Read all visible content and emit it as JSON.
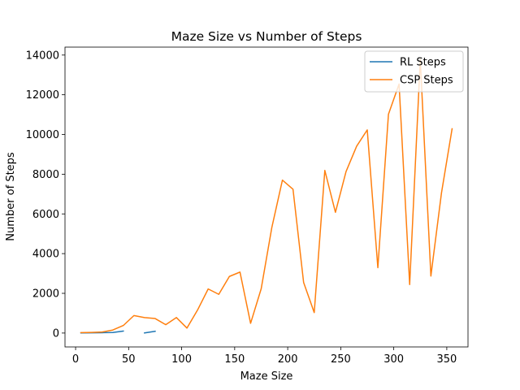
{
  "chart_data": {
    "type": "line",
    "title": "Maze Size vs Number of Steps",
    "xlabel": "Maze Size",
    "ylabel": "Number of Steps",
    "xlim": [
      -10,
      370
    ],
    "ylim": [
      -700,
      14400
    ],
    "xticks": [
      0,
      50,
      100,
      150,
      200,
      250,
      300,
      350
    ],
    "yticks": [
      0,
      2000,
      4000,
      6000,
      8000,
      10000,
      12000,
      14000
    ],
    "legend_position": "top-right",
    "grid": false,
    "series": [
      {
        "name": "RL Steps",
        "color": "#1f77b4",
        "segments": [
          {
            "x": [
              5,
              15,
              25,
              35,
              45
            ],
            "y": [
              5,
              12,
              18,
              25,
              100
            ]
          },
          {
            "x": [
              65,
              75
            ],
            "y": [
              5,
              90
            ]
          }
        ]
      },
      {
        "name": "CSP Steps",
        "color": "#ff7f0e",
        "segments": [
          {
            "x": [
              5,
              15,
              25,
              35,
              45,
              55,
              65,
              75,
              85,
              95,
              105,
              115,
              125,
              135,
              145,
              155,
              165,
              175,
              185,
              195,
              205,
              215,
              225,
              235,
              245,
              255,
              265,
              275,
              285,
              295,
              305,
              315,
              325,
              335,
              345,
              355
            ],
            "y": [
              20,
              30,
              50,
              150,
              380,
              880,
              780,
              730,
              420,
              780,
              250,
              1160,
              2220,
              1950,
              2850,
              3070,
              490,
              2230,
              5310,
              7700,
              7240,
              2550,
              1030,
              8190,
              6080,
              8130,
              9410,
              10230,
              3290,
              11020,
              12540,
              2440,
              13780,
              2870,
              7060,
              10290
            ]
          }
        ]
      }
    ]
  }
}
